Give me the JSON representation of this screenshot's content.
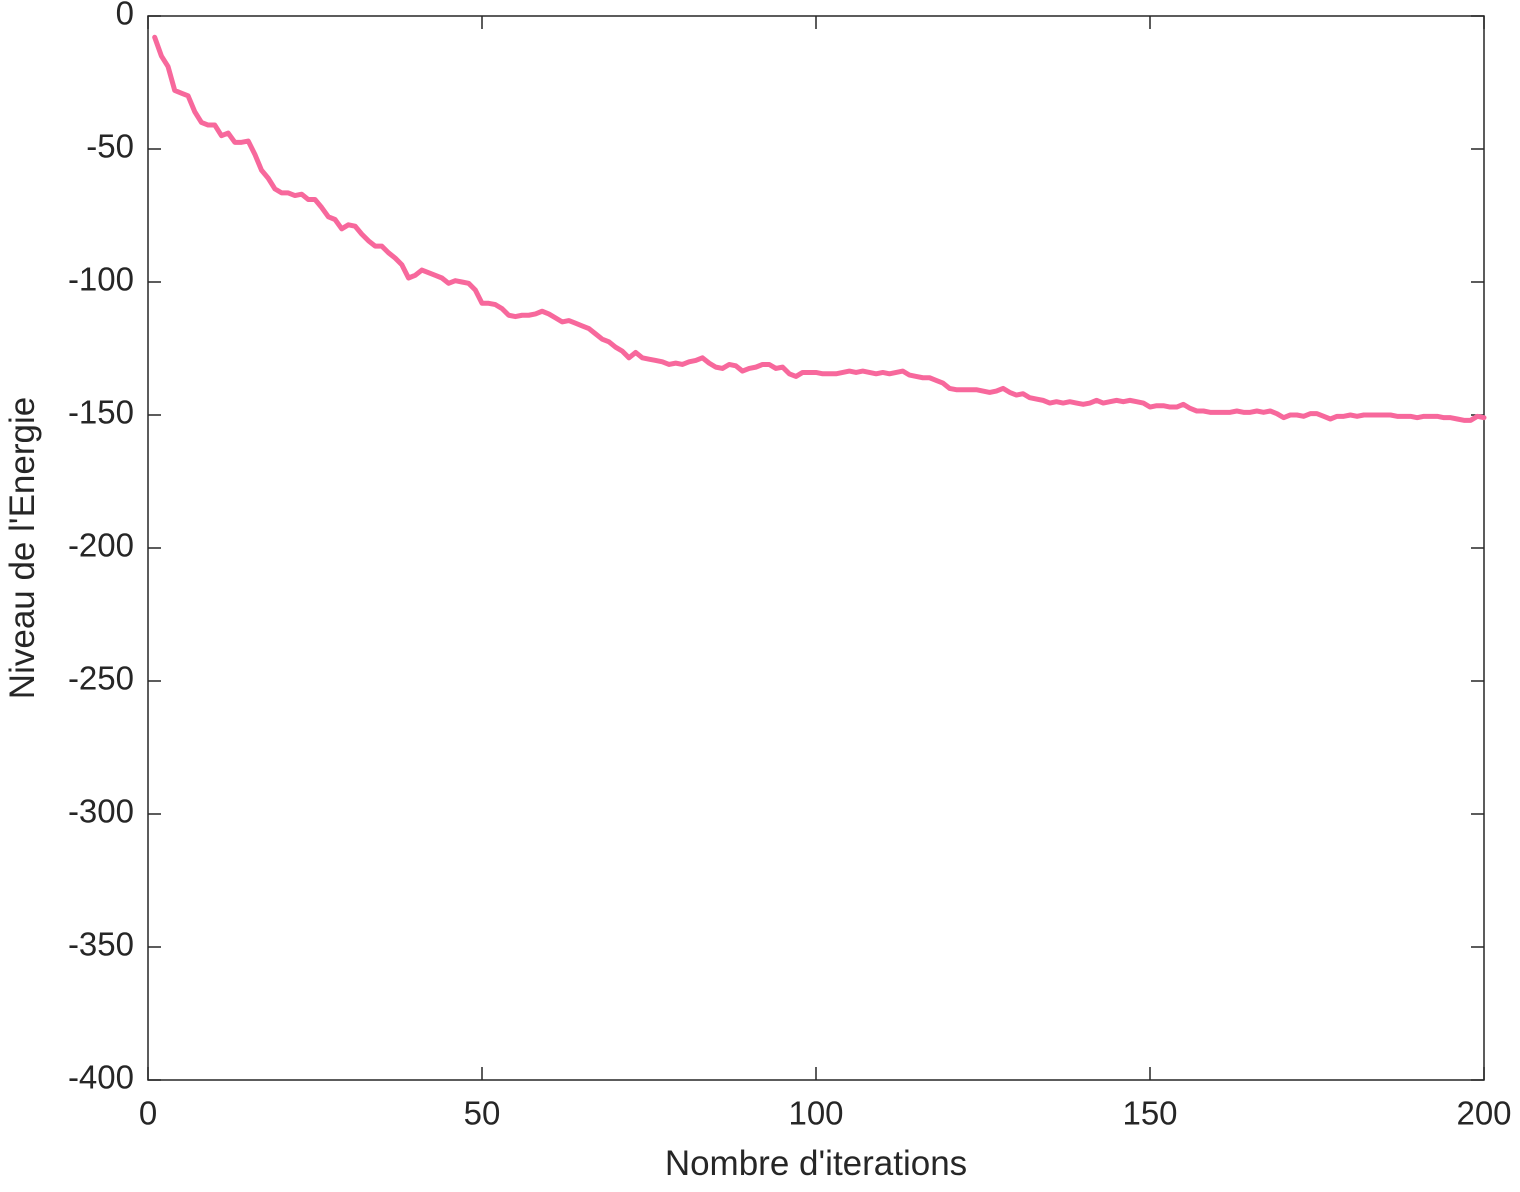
{
  "chart_data": {
    "type": "line",
    "x_label": "Nombre d'iterations",
    "y_label": "Niveau de l'Energie",
    "xlim": [
      0,
      200
    ],
    "xticks": [
      0,
      50,
      100,
      150,
      200
    ],
    "ylim": [
      -400,
      0
    ],
    "yticks": [
      -400,
      -350,
      -300,
      -250,
      -200,
      -150,
      -100,
      -50,
      0
    ],
    "grid": false,
    "x": [
      1,
      2,
      3,
      4,
      5,
      6,
      7,
      8,
      9,
      10,
      11,
      12,
      13,
      14,
      15,
      16,
      17,
      18,
      19,
      20,
      21,
      22,
      23,
      24,
      25,
      26,
      27,
      28,
      29,
      30,
      31,
      32,
      33,
      34,
      35,
      36,
      37,
      38,
      39,
      40,
      41,
      42,
      43,
      44,
      45,
      46,
      47,
      48,
      49,
      50,
      51,
      52,
      53,
      54,
      55,
      56,
      57,
      58,
      59,
      60,
      61,
      62,
      63,
      64,
      65,
      66,
      67,
      68,
      69,
      70,
      71,
      72,
      73,
      74,
      75,
      76,
      77,
      78,
      79,
      80,
      81,
      82,
      83,
      84,
      85,
      86,
      87,
      88,
      89,
      90,
      91,
      92,
      93,
      94,
      95,
      96,
      97,
      98,
      99,
      100,
      101,
      102,
      103,
      104,
      105,
      106,
      107,
      108,
      109,
      110,
      111,
      112,
      113,
      114,
      115,
      116,
      117,
      118,
      119,
      120,
      121,
      122,
      123,
      124,
      125,
      126,
      127,
      128,
      129,
      130,
      131,
      132,
      133,
      134,
      135,
      136,
      137,
      138,
      139,
      140,
      141,
      142,
      143,
      144,
      145,
      146,
      147,
      148,
      149,
      150,
      151,
      152,
      153,
      154,
      155,
      156,
      157,
      158,
      159,
      160,
      161,
      162,
      163,
      164,
      165,
      166,
      167,
      168,
      169,
      170,
      171,
      172,
      173,
      174,
      175,
      176,
      177,
      178,
      179,
      180,
      181,
      182,
      183,
      184,
      185,
      186,
      187,
      188,
      189,
      190,
      191,
      192,
      193,
      194,
      195,
      196,
      197,
      198,
      199,
      200
    ],
    "series": [
      {
        "color": "#f7689c",
        "values": [
          -8,
          -15,
          -19,
          -28,
          -29,
          -30,
          -36,
          -40,
          -41,
          -41,
          -45,
          -44,
          -47.5,
          -47.5,
          -47,
          -52,
          -58,
          -61,
          -65,
          -66.5,
          -66.5,
          -67.5,
          -67,
          -69,
          -69,
          -72,
          -75.5,
          -76.5,
          -80,
          -78.5,
          -79,
          -82,
          -84.5,
          -86.5,
          -86.5,
          -89,
          -91,
          -93.5,
          -98.5,
          -97.5,
          -95.5,
          -96.5,
          -97.5,
          -98.5,
          -100.5,
          -99.5,
          -100,
          -100.5,
          -103,
          -108,
          -108,
          -108.5,
          -110,
          -112.5,
          -113,
          -112.5,
          -112.5,
          -112,
          -111,
          -112,
          -113.5,
          -115,
          -114.5,
          -115.5,
          -116.5,
          -117.5,
          -119.5,
          -121.5,
          -122.5,
          -124.5,
          -126,
          -128.5,
          -126.5,
          -128.5,
          -129,
          -129.5,
          -130,
          -131,
          -130.5,
          -131,
          -130,
          -129.5,
          -128.5,
          -130.5,
          -132,
          -132.5,
          -131,
          -131.5,
          -133.5,
          -132.5,
          -132,
          -131,
          -131,
          -132.5,
          -132,
          -134.5,
          -135.5,
          -134,
          -134,
          -134,
          -134.5,
          -134.5,
          -134.5,
          -134,
          -133.5,
          -134,
          -133.5,
          -134,
          -134.5,
          -134,
          -134.5,
          -134,
          -133.5,
          -135,
          -135.5,
          -136,
          -136,
          -137,
          -138,
          -140,
          -140.5,
          -140.5,
          -140.5,
          -140.5,
          -141,
          -141.5,
          -141,
          -140,
          -141.5,
          -142.5,
          -142,
          -143.5,
          -144,
          -144.5,
          -145.5,
          -145,
          -145.5,
          -145,
          -145.5,
          -146,
          -145.5,
          -144.5,
          -145.5,
          -145,
          -144.5,
          -145,
          -144.5,
          -145,
          -145.5,
          -147,
          -146.5,
          -146.5,
          -147,
          -147,
          -146,
          -147.5,
          -148.5,
          -148.5,
          -149,
          -149,
          -149,
          -149,
          -148.5,
          -149,
          -149,
          -148.5,
          -149,
          -148.5,
          -149.5,
          -151,
          -150,
          -150,
          -150.5,
          -149.5,
          -149.5,
          -150.5,
          -151.5,
          -150.5,
          -150.5,
          -150,
          -150.5,
          -150,
          -150,
          -150,
          -150,
          -150,
          -150.5,
          -150.5,
          -150.5,
          -151,
          -150.5,
          -150.5,
          -150.5,
          -151,
          -151,
          -151.5,
          -152,
          -152,
          -150.5,
          -151
        ]
      }
    ]
  }
}
